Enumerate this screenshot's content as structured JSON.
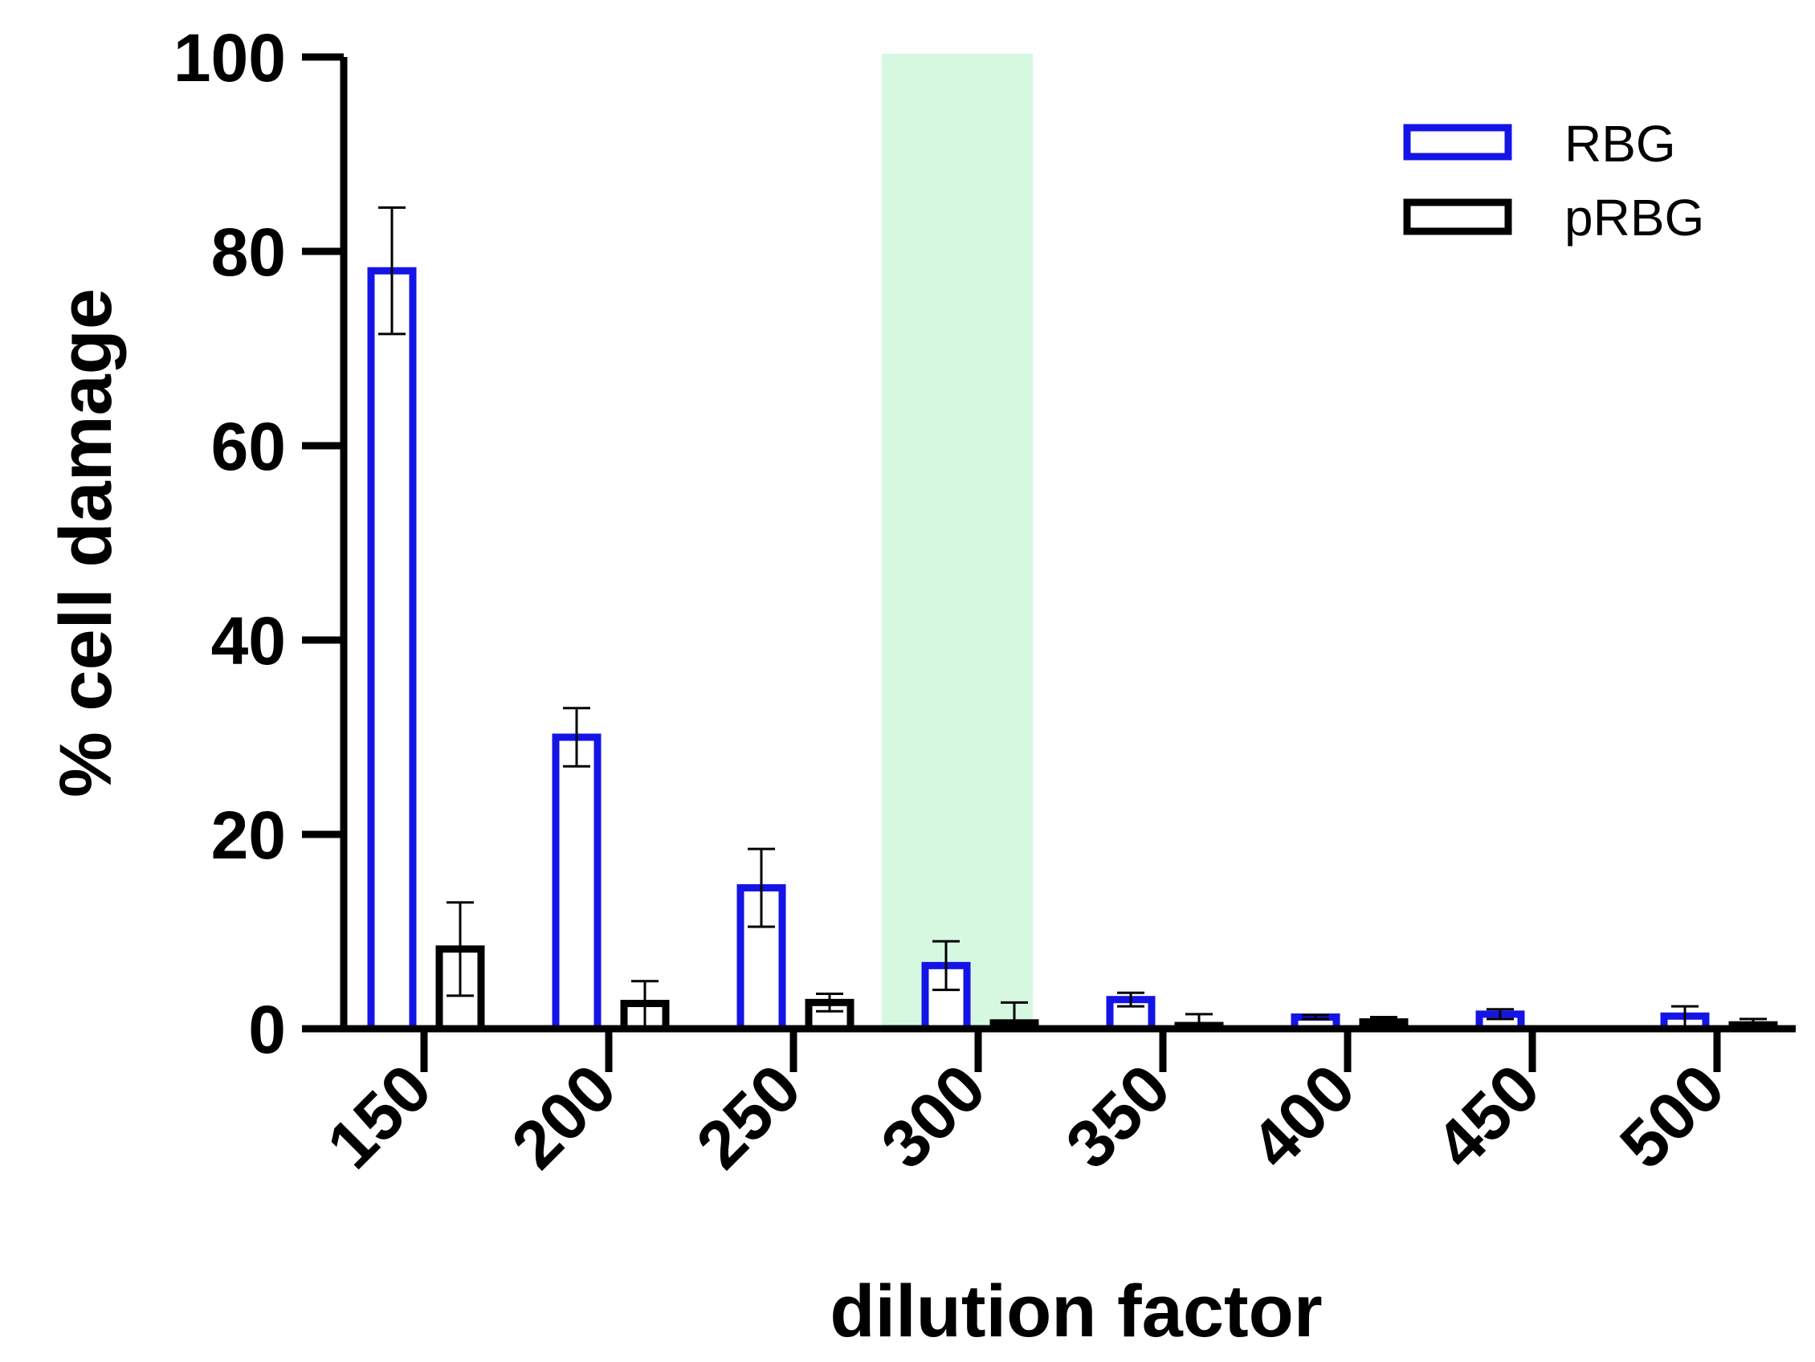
{
  "chart_data": {
    "type": "bar",
    "xlabel": "dilution factor",
    "ylabel": "% cell damage",
    "ylim": [
      0,
      100
    ],
    "yticks": [
      "0",
      "20",
      "40",
      "60",
      "80",
      "100"
    ],
    "categories": [
      "150",
      "200",
      "250",
      "300",
      "350",
      "400",
      "450",
      "500"
    ],
    "highlight_category": "300",
    "highlight_color": "#d6f8e1",
    "legend_position": "top-right",
    "grid": false,
    "series": [
      {
        "name": "RBG",
        "color": "#1414e6",
        "values": [
          78,
          30,
          14.5,
          6.5,
          3,
          1.2,
          1.5,
          1.3
        ],
        "errors": [
          6.5,
          3,
          4,
          2.5,
          0.7,
          0.2,
          0.5,
          1
        ]
      },
      {
        "name": "pRBG",
        "color": "#000000",
        "values": [
          8.2,
          2.6,
          2.7,
          0.6,
          0.2,
          0.7,
          0.0,
          0.4
        ],
        "errors": [
          4.8,
          2.3,
          0.9,
          2.1,
          1.3,
          0.5,
          0.0,
          0.6
        ]
      }
    ]
  }
}
